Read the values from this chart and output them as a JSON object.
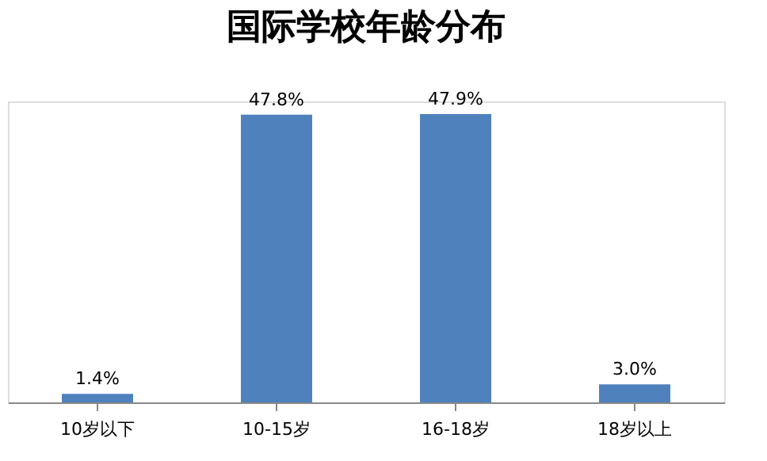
{
  "chart_data": {
    "type": "bar",
    "title": "国际学校年龄分布",
    "categories": [
      "10岁以下",
      "10-15岁",
      "16-18岁",
      "18岁以上"
    ],
    "values": [
      1.4,
      47.8,
      47.9,
      3.0
    ],
    "value_labels": [
      "1.4%",
      "47.8%",
      "47.9%",
      "3.0%"
    ],
    "color": "#4f81bd"
  }
}
